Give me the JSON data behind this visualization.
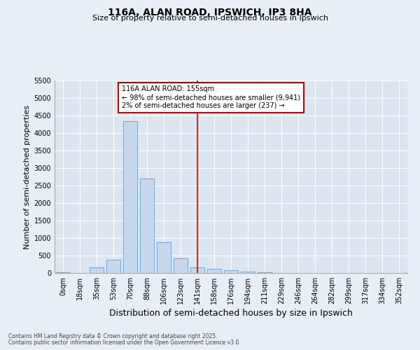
{
  "title": "116A, ALAN ROAD, IPSWICH, IP3 8HA",
  "subtitle": "Size of property relative to semi-detached houses in Ipswich",
  "xlabel": "Distribution of semi-detached houses by size in Ipswich",
  "ylabel": "Number of semi-detached properties",
  "bar_labels": [
    "0sqm",
    "18sqm",
    "35sqm",
    "53sqm",
    "70sqm",
    "88sqm",
    "106sqm",
    "123sqm",
    "141sqm",
    "158sqm",
    "176sqm",
    "194sqm",
    "211sqm",
    "229sqm",
    "246sqm",
    "264sqm",
    "282sqm",
    "299sqm",
    "317sqm",
    "334sqm",
    "352sqm"
  ],
  "bar_values": [
    18,
    0,
    170,
    390,
    4350,
    2700,
    890,
    420,
    170,
    120,
    75,
    40,
    15,
    8,
    5,
    3,
    2,
    1,
    1,
    0,
    0
  ],
  "bar_color": "#c8d8ec",
  "bar_edge_color": "#6699cc",
  "highlight_index": 8,
  "highlight_line_color": "#cc0000",
  "highlight_box_text": "116A ALAN ROAD: 155sqm\n← 98% of semi-detached houses are smaller (9,941)\n2% of semi-detached houses are larger (237) →",
  "highlight_box_color": "#cc0000",
  "ylim": [
    0,
    5500
  ],
  "yticks": [
    0,
    500,
    1000,
    1500,
    2000,
    2500,
    3000,
    3500,
    4000,
    4500,
    5000,
    5500
  ],
  "footer_line1": "Contains HM Land Registry data © Crown copyright and database right 2025.",
  "footer_line2": "Contains public sector information licensed under the Open Government Licence v3.0.",
  "background_color": "#e8eef5",
  "plot_bg_color": "#dce6f0",
  "grid_color": "#ffffff",
  "title_fontsize": 10,
  "subtitle_fontsize": 8,
  "axis_label_fontsize": 8,
  "tick_fontsize": 7,
  "footer_fontsize": 5.5
}
